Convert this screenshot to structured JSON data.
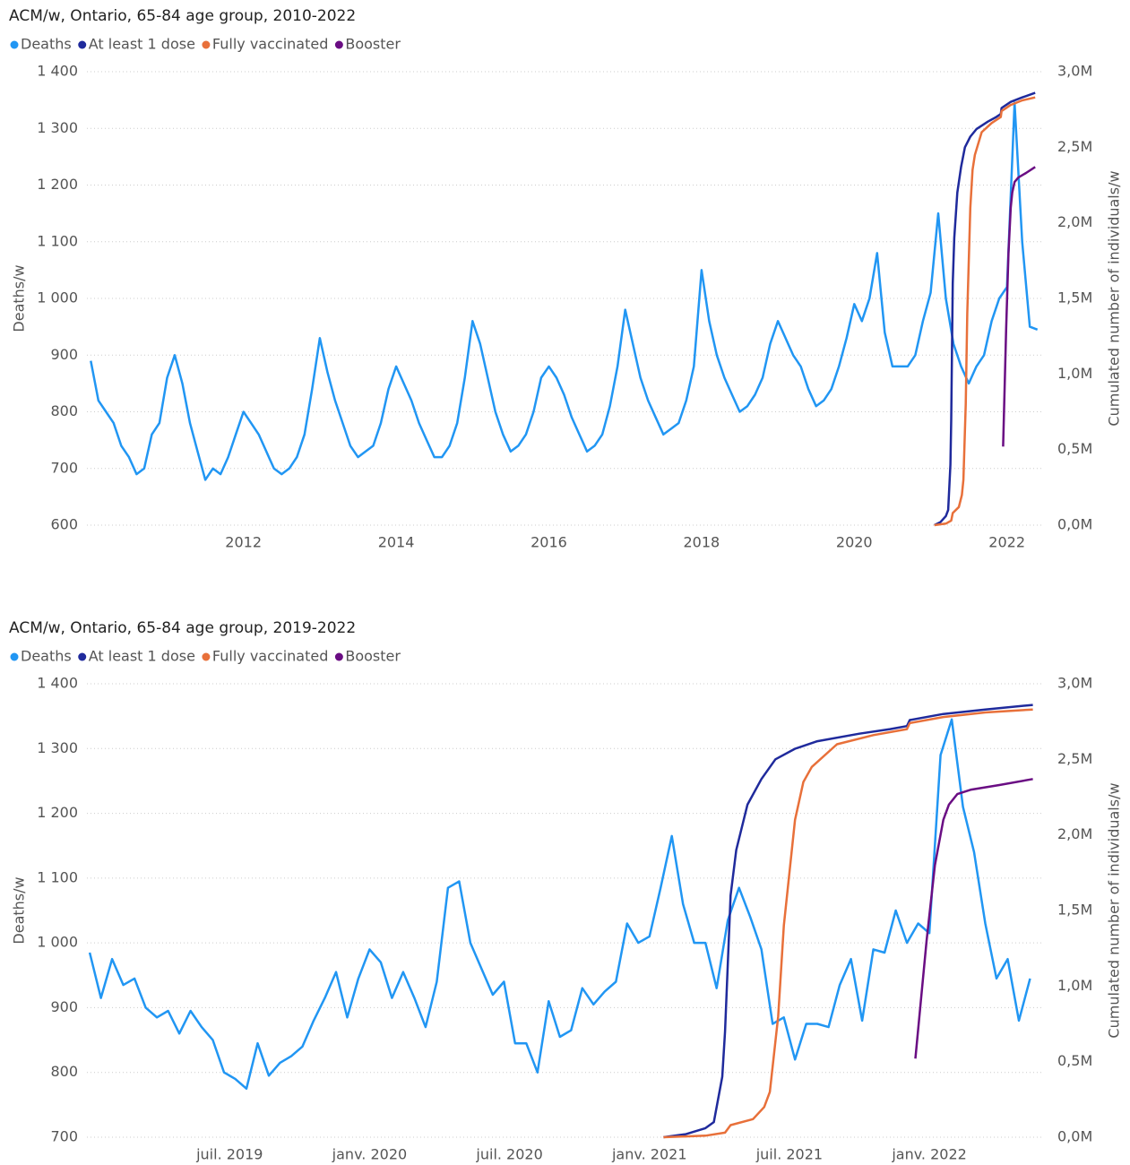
{
  "chart_data": [
    {
      "type": "line",
      "title": "ACM/w, Ontario, 65-84 age group, 2010-2022",
      "y_label": "Deaths/w",
      "y2_label": "Cumulated number of individuals/w",
      "xlim": [
        2009.95,
        2022.45
      ],
      "xticks": [
        2012,
        2014,
        2016,
        2018,
        2020,
        2022
      ],
      "ylim": [
        600,
        1400
      ],
      "yticks": [
        600,
        700,
        800,
        900,
        {
          "value": 1000,
          "label": "1 000"
        },
        {
          "value": 1100,
          "label": "1 100"
        },
        {
          "value": 1200,
          "label": "1 200"
        },
        {
          "value": 1300,
          "label": "1 300"
        },
        {
          "value": 1400,
          "label": "1 400"
        }
      ],
      "y2lim": [
        0,
        3
      ],
      "y2ticks": [
        {
          "value": 0,
          "label": "0,0M"
        },
        {
          "value": 0.5,
          "label": "0,5M"
        },
        {
          "value": 1,
          "label": "1,0M"
        },
        {
          "value": 1.5,
          "label": "1,5M"
        },
        {
          "value": 2,
          "label": "2,0M"
        },
        {
          "value": 2.5,
          "label": "2,5M"
        },
        {
          "value": 3,
          "label": "3,0M"
        }
      ],
      "grid": true,
      "series": [
        {
          "name": "Deaths",
          "color": "#2196f3",
          "x": [
            2010.0,
            2010.1,
            2010.2,
            2010.3,
            2010.4,
            2010.5,
            2010.6,
            2010.7,
            2010.8,
            2010.9,
            2011.0,
            2011.1,
            2011.2,
            2011.3,
            2011.4,
            2011.5,
            2011.6,
            2011.7,
            2011.8,
            2011.9,
            2012.0,
            2012.1,
            2012.2,
            2012.3,
            2012.4,
            2012.5,
            2012.6,
            2012.7,
            2012.8,
            2012.9,
            2013.0,
            2013.1,
            2013.2,
            2013.3,
            2013.4,
            2013.5,
            2013.6,
            2013.7,
            2013.8,
            2013.9,
            2014.0,
            2014.1,
            2014.2,
            2014.3,
            2014.4,
            2014.5,
            2014.6,
            2014.7,
            2014.8,
            2014.9,
            2015.0,
            2015.1,
            2015.2,
            2015.3,
            2015.4,
            2015.5,
            2015.6,
            2015.7,
            2015.8,
            2015.9,
            2016.0,
            2016.1,
            2016.2,
            2016.3,
            2016.4,
            2016.5,
            2016.6,
            2016.7,
            2016.8,
            2016.9,
            2017.0,
            2017.1,
            2017.2,
            2017.3,
            2017.4,
            2017.5,
            2017.6,
            2017.7,
            2017.8,
            2017.9,
            2018.0,
            2018.1,
            2018.2,
            2018.3,
            2018.4,
            2018.5,
            2018.6,
            2018.7,
            2018.8,
            2018.9,
            2019.0,
            2019.1,
            2019.2,
            2019.3,
            2019.4,
            2019.5,
            2019.6,
            2019.7,
            2019.8,
            2019.9,
            2020.0,
            2020.1,
            2020.2,
            2020.3,
            2020.4,
            2020.5,
            2020.6,
            2020.7,
            2020.8,
            2020.9,
            2021.0,
            2021.1,
            2021.2,
            2021.3,
            2021.4,
            2021.5,
            2021.6,
            2021.7,
            2021.8,
            2021.9,
            2022.0,
            2022.1,
            2022.2,
            2022.3,
            2022.4
          ],
          "values": [
            890,
            820,
            800,
            780,
            740,
            720,
            690,
            700,
            760,
            780,
            860,
            900,
            850,
            780,
            730,
            680,
            700,
            690,
            720,
            760,
            800,
            780,
            760,
            730,
            700,
            690,
            700,
            720,
            760,
            840,
            930,
            870,
            820,
            780,
            740,
            720,
            730,
            740,
            780,
            840,
            880,
            850,
            820,
            780,
            750,
            720,
            720,
            740,
            780,
            860,
            960,
            920,
            860,
            800,
            760,
            730,
            740,
            760,
            800,
            860,
            880,
            860,
            830,
            790,
            760,
            730,
            740,
            760,
            810,
            880,
            980,
            920,
            860,
            820,
            790,
            760,
            770,
            780,
            820,
            880,
            1050,
            960,
            900,
            860,
            830,
            800,
            810,
            830,
            860,
            920,
            960,
            930,
            900,
            880,
            840,
            810,
            820,
            840,
            880,
            930,
            990,
            960,
            1000,
            1080,
            940,
            880,
            880,
            880,
            900,
            960,
            1010,
            1150,
            1000,
            920,
            880,
            850,
            880,
            900,
            960,
            1000,
            1020,
            1345,
            1100,
            950,
            945
          ]
        },
        {
          "name": "At least 1 dose",
          "color": "#1f2a9c",
          "axis": "y2",
          "x": [
            2021.05,
            2021.13,
            2021.2,
            2021.23,
            2021.26,
            2021.27,
            2021.29,
            2021.31,
            2021.35,
            2021.4,
            2021.45,
            2021.52,
            2021.6,
            2021.75,
            2021.86,
            2021.92,
            2021.93,
            2022.05,
            2022.2,
            2022.37
          ],
          "values": [
            0,
            0.02,
            0.06,
            0.1,
            0.4,
            0.7,
            1.6,
            1.9,
            2.2,
            2.37,
            2.5,
            2.57,
            2.62,
            2.67,
            2.7,
            2.72,
            2.76,
            2.8,
            2.83,
            2.86
          ]
        },
        {
          "name": "Fully vaccinated",
          "color": "#e8703a",
          "axis": "y2",
          "x": [
            2021.05,
            2021.2,
            2021.27,
            2021.29,
            2021.37,
            2021.41,
            2021.43,
            2021.46,
            2021.48,
            2021.52,
            2021.55,
            2021.58,
            2021.67,
            2021.8,
            2021.92,
            2021.93,
            2022.05,
            2022.2,
            2022.37
          ],
          "values": [
            0,
            0.01,
            0.03,
            0.08,
            0.12,
            0.2,
            0.3,
            0.8,
            1.4,
            2.1,
            2.35,
            2.45,
            2.6,
            2.66,
            2.7,
            2.74,
            2.78,
            2.81,
            2.83
          ]
        },
        {
          "name": "Booster",
          "color": "#6a0d83",
          "axis": "y2",
          "x": [
            2021.95,
            2021.99,
            2022.02,
            2022.05,
            2022.07,
            2022.1,
            2022.15,
            2022.25,
            2022.37
          ],
          "values": [
            0.52,
            1.3,
            1.8,
            2.1,
            2.2,
            2.27,
            2.3,
            2.33,
            2.37
          ]
        }
      ]
    },
    {
      "type": "line",
      "title": "ACM/w, Ontario, 65-84 age group, 2019-2022",
      "y_label": "Deaths/w",
      "y2_label": "Cumulated number of individuals/w",
      "xlim": [
        2018.99,
        2022.4
      ],
      "xticks": [
        {
          "value": 2019.5,
          "label": "juil. 2019"
        },
        {
          "value": 2020.0,
          "label": "janv. 2020"
        },
        {
          "value": 2020.5,
          "label": "juil. 2020"
        },
        {
          "value": 2021.0,
          "label": "janv. 2021"
        },
        {
          "value": 2021.5,
          "label": "juil. 2021"
        },
        {
          "value": 2022.0,
          "label": "janv. 2022"
        }
      ],
      "ylim": [
        700,
        1400
      ],
      "yticks": [
        700,
        800,
        900,
        {
          "value": 1000,
          "label": "1 000"
        },
        {
          "value": 1100,
          "label": "1 100"
        },
        {
          "value": 1200,
          "label": "1 200"
        },
        {
          "value": 1300,
          "label": "1 300"
        },
        {
          "value": 1400,
          "label": "1 400"
        }
      ],
      "y2lim": [
        0,
        3
      ],
      "y2ticks": [
        {
          "value": 0,
          "label": "0,0M"
        },
        {
          "value": 0.5,
          "label": "0,5M"
        },
        {
          "value": 1,
          "label": "1,0M"
        },
        {
          "value": 1.5,
          "label": "1,5M"
        },
        {
          "value": 2,
          "label": "2,0M"
        },
        {
          "value": 2.5,
          "label": "2,5M"
        },
        {
          "value": 3,
          "label": "3,0M"
        }
      ],
      "grid": true,
      "series": [
        {
          "name": "Deaths",
          "color": "#2196f3",
          "x": [
            2019.0,
            2019.04,
            2019.08,
            2019.12,
            2019.16,
            2019.2,
            2019.24,
            2019.28,
            2019.32,
            2019.36,
            2019.4,
            2019.44,
            2019.48,
            2019.52,
            2019.56,
            2019.6,
            2019.64,
            2019.68,
            2019.72,
            2019.76,
            2019.8,
            2019.84,
            2019.88,
            2019.92,
            2019.96,
            2020.0,
            2020.04,
            2020.08,
            2020.12,
            2020.16,
            2020.2,
            2020.24,
            2020.28,
            2020.32,
            2020.36,
            2020.4,
            2020.44,
            2020.48,
            2020.52,
            2020.56,
            2020.6,
            2020.64,
            2020.68,
            2020.72,
            2020.76,
            2020.8,
            2020.84,
            2020.88,
            2020.92,
            2020.96,
            2021.0,
            2021.04,
            2021.08,
            2021.12,
            2021.16,
            2021.2,
            2021.24,
            2021.28,
            2021.32,
            2021.36,
            2021.4,
            2021.44,
            2021.48,
            2021.52,
            2021.56,
            2021.6,
            2021.64,
            2021.68,
            2021.72,
            2021.76,
            2021.8,
            2021.84,
            2021.88,
            2021.92,
            2021.96,
            2022.0,
            2022.04,
            2022.08,
            2022.12,
            2022.16,
            2022.2,
            2022.24,
            2022.28,
            2022.32,
            2022.36
          ],
          "values": [
            985,
            915,
            975,
            935,
            945,
            900,
            885,
            895,
            860,
            895,
            870,
            850,
            800,
            790,
            775,
            845,
            795,
            815,
            825,
            840,
            880,
            915,
            955,
            885,
            945,
            990,
            970,
            915,
            955,
            915,
            870,
            940,
            1085,
            1095,
            1000,
            960,
            920,
            940,
            845,
            845,
            800,
            910,
            855,
            865,
            930,
            905,
            925,
            940,
            1030,
            1000,
            1010,
            1085,
            1165,
            1060,
            1000,
            1000,
            930,
            1035,
            1085,
            1040,
            990,
            875,
            885,
            820,
            875,
            875,
            870,
            935,
            975,
            880,
            990,
            985,
            1050,
            1000,
            1030,
            1015,
            1290,
            1345,
            1210,
            1140,
            1030,
            945,
            975,
            880,
            945
          ]
        },
        {
          "name": "At least 1 dose",
          "color": "#1f2a9c",
          "axis": "y2",
          "x": [
            2021.05,
            2021.13,
            2021.2,
            2021.23,
            2021.26,
            2021.27,
            2021.29,
            2021.31,
            2021.35,
            2021.4,
            2021.45,
            2021.52,
            2021.6,
            2021.75,
            2021.86,
            2021.92,
            2021.93,
            2022.05,
            2022.2,
            2022.37
          ],
          "values": [
            0,
            0.02,
            0.06,
            0.1,
            0.4,
            0.7,
            1.6,
            1.9,
            2.2,
            2.37,
            2.5,
            2.57,
            2.62,
            2.67,
            2.7,
            2.72,
            2.76,
            2.8,
            2.83,
            2.86
          ]
        },
        {
          "name": "Fully vaccinated",
          "color": "#e8703a",
          "axis": "y2",
          "x": [
            2021.05,
            2021.2,
            2021.27,
            2021.29,
            2021.37,
            2021.41,
            2021.43,
            2021.46,
            2021.48,
            2021.52,
            2021.55,
            2021.58,
            2021.67,
            2021.8,
            2021.92,
            2021.93,
            2022.05,
            2022.2,
            2022.37
          ],
          "values": [
            0,
            0.01,
            0.03,
            0.08,
            0.12,
            0.2,
            0.3,
            0.8,
            1.4,
            2.1,
            2.35,
            2.45,
            2.6,
            2.66,
            2.7,
            2.74,
            2.78,
            2.81,
            2.83
          ]
        },
        {
          "name": "Booster",
          "color": "#6a0d83",
          "axis": "y2",
          "x": [
            2021.95,
            2021.99,
            2022.02,
            2022.05,
            2022.07,
            2022.1,
            2022.15,
            2022.25,
            2022.37
          ],
          "values": [
            0.52,
            1.3,
            1.8,
            2.1,
            2.2,
            2.27,
            2.3,
            2.33,
            2.37
          ]
        }
      ]
    }
  ]
}
